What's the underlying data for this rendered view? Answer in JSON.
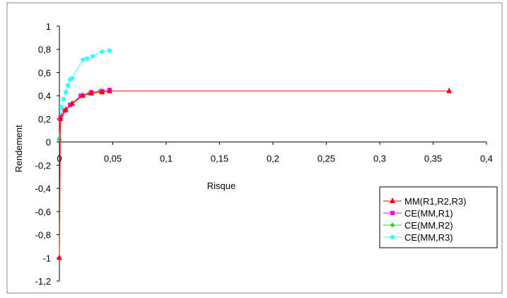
{
  "chart_data": {
    "type": "scatter",
    "title": "",
    "xlabel": "Risque",
    "ylabel": "Rendement",
    "xlim": [
      0,
      0.4
    ],
    "ylim": [
      -1.2,
      1
    ],
    "x_ticks": [
      0,
      0.05,
      0.1,
      0.15,
      0.2,
      0.25,
      0.3,
      0.35,
      0.4
    ],
    "y_ticks": [
      -1.2,
      -1,
      -0.8,
      -0.6,
      -0.4,
      -0.2,
      0,
      0.2,
      0.4,
      0.6,
      0.8,
      1
    ],
    "x_tick_labels": [
      "0",
      "0,05",
      "0,1",
      "0,15",
      "0,2",
      "0,25",
      "0,3",
      "0,35",
      "0,4"
    ],
    "y_tick_labels": [
      "-1,2",
      "-1",
      "-0,8",
      "-0,6",
      "-0,4",
      "-0,2",
      "0",
      "0,2",
      "0,4",
      "0,6",
      "0,8",
      "1"
    ],
    "grid": false,
    "legend_position": "right",
    "series": [
      {
        "name": "MM(R1,R2,R3)",
        "color": "#ff0000",
        "marker": "triangle",
        "points": [
          [
            0.0,
            -1.0
          ],
          [
            0.001,
            0.2
          ],
          [
            0.006,
            0.28
          ],
          [
            0.012,
            0.33
          ],
          [
            0.022,
            0.4
          ],
          [
            0.03,
            0.42
          ],
          [
            0.04,
            0.43
          ],
          [
            0.047,
            0.44
          ],
          [
            0.365,
            0.44
          ]
        ]
      },
      {
        "name": "CE(MM,R1)",
        "color": "#ff00ff",
        "marker": "square",
        "points": [
          [
            0.001,
            0.21
          ],
          [
            0.005,
            0.27
          ],
          [
            0.01,
            0.32
          ],
          [
            0.02,
            0.4
          ],
          [
            0.03,
            0.43
          ],
          [
            0.04,
            0.44
          ],
          [
            0.047,
            0.45
          ]
        ]
      },
      {
        "name": "CE(MM,R2)",
        "color": "#33cc33",
        "marker": "diamond",
        "points": [
          [
            0.0,
            0.02
          ],
          [
            0.002,
            0.23
          ],
          [
            0.006,
            0.28
          ],
          [
            0.011,
            0.33
          ],
          [
            0.021,
            0.4
          ],
          [
            0.028,
            0.42
          ],
          [
            0.038,
            0.44
          ],
          [
            0.047,
            0.45
          ]
        ]
      },
      {
        "name": "CE(MM,R3)",
        "color": "#33ffff",
        "marker": "circle",
        "points": [
          [
            0.0,
            0.03
          ],
          [
            0.002,
            0.3
          ],
          [
            0.004,
            0.37
          ],
          [
            0.006,
            0.43
          ],
          [
            0.008,
            0.49
          ],
          [
            0.01,
            0.54
          ],
          [
            0.012,
            0.55
          ],
          [
            0.022,
            0.71
          ],
          [
            0.026,
            0.72
          ],
          [
            0.031,
            0.74
          ],
          [
            0.04,
            0.78
          ],
          [
            0.047,
            0.79
          ]
        ]
      }
    ]
  }
}
